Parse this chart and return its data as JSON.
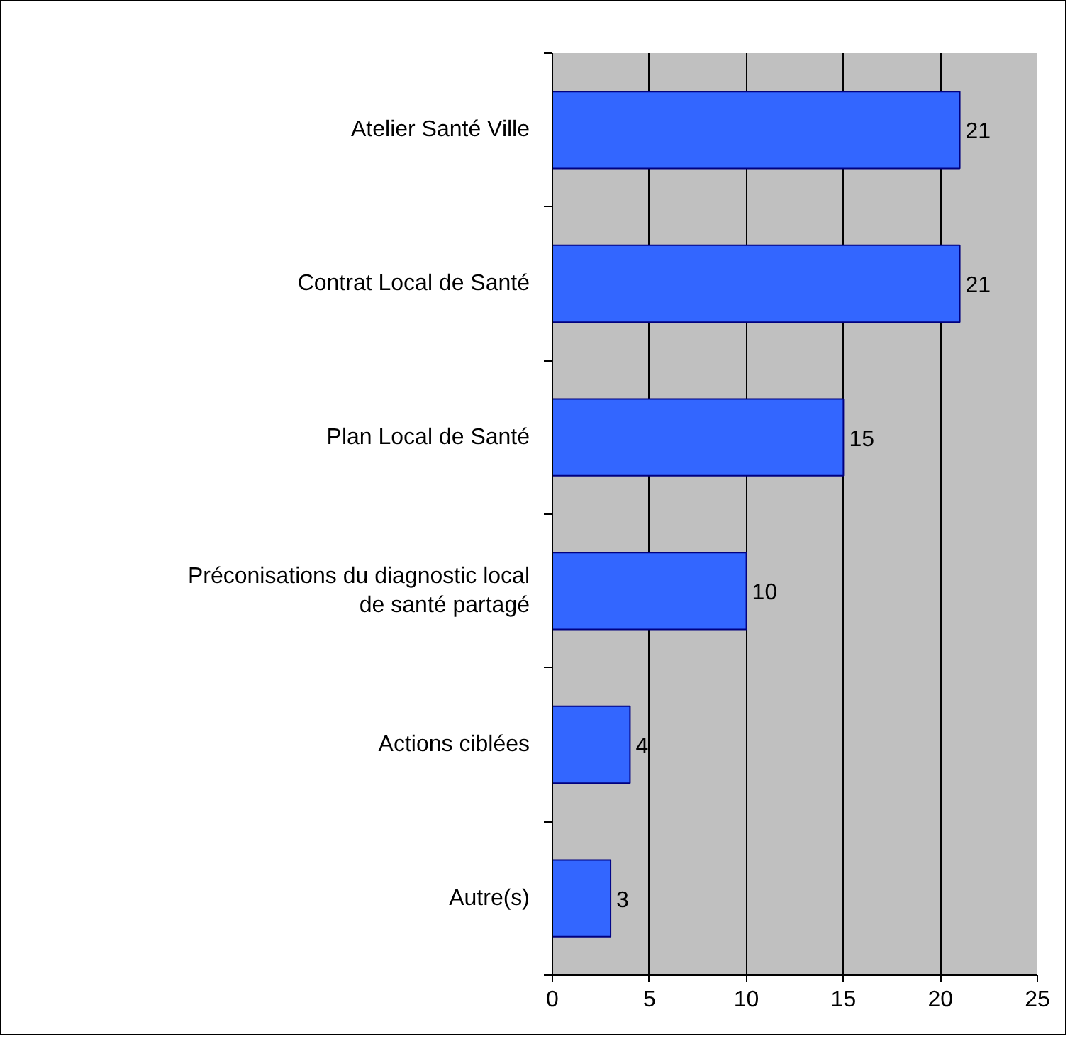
{
  "chart_data": {
    "type": "bar",
    "orientation": "horizontal",
    "categories": [
      "Atelier Santé Ville",
      "Contrat Local de Santé",
      "Plan Local de Santé",
      "Préconisations du diagnostic local de santé partagé",
      "Actions ciblées",
      "Autre(s)"
    ],
    "values": [
      21,
      21,
      15,
      10,
      4,
      3
    ],
    "color": "#3366ff",
    "xlim": [
      0,
      25
    ],
    "xticks": [
      0,
      5,
      10,
      15,
      20,
      25
    ],
    "grid": "x",
    "data_labels": true
  }
}
